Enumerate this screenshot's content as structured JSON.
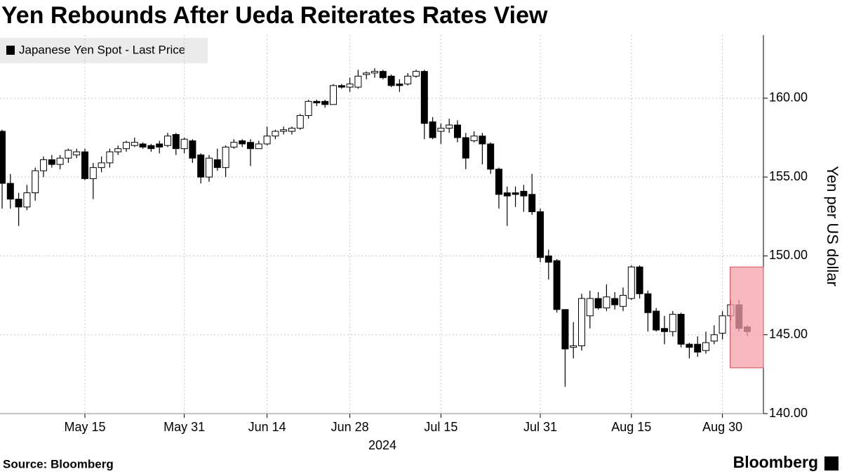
{
  "chart_data": {
    "type": "candlestick",
    "title": "Yen Rebounds After Ueda Reiterates Rates View",
    "y_axis_label": "Yen per US dollar",
    "x_group_label": "2024",
    "source": "Source: Bloomberg",
    "brand": "Bloomberg",
    "categories": [
      null,
      null,
      null,
      null,
      null,
      null,
      null,
      null,
      null,
      null,
      "May 15",
      null,
      null,
      null,
      null,
      null,
      null,
      null,
      null,
      null,
      null,
      null,
      "May 31",
      null,
      null,
      null,
      null,
      null,
      null,
      null,
      null,
      null,
      "Jun 14",
      null,
      null,
      null,
      null,
      null,
      null,
      null,
      null,
      null,
      "Jun 28",
      null,
      null,
      null,
      null,
      null,
      null,
      null,
      null,
      null,
      null,
      "Jul 15",
      null,
      null,
      null,
      null,
      null,
      null,
      null,
      null,
      null,
      null,
      null,
      "Jul 31",
      null,
      null,
      null,
      null,
      null,
      null,
      null,
      null,
      null,
      null,
      "Aug 15",
      null,
      null,
      null,
      null,
      null,
      null,
      null,
      null,
      null,
      null,
      "Aug 30",
      null,
      null,
      null
    ],
    "series": [
      {
        "name": "Japanese Yen Spot - Last Price",
        "up_color": "#ffffff",
        "down_color": "#000000",
        "open": [
          157.9,
          154.6,
          153.6,
          153.1,
          154.0,
          155.4,
          156.1,
          155.8,
          156.2,
          156.4,
          156.6,
          154.9,
          155.6,
          155.9,
          156.6,
          156.8,
          157.0,
          157.1,
          157.0,
          157.1,
          157.0,
          157.7,
          156.8,
          157.3,
          156.4,
          155.0,
          156.1,
          155.6,
          156.9,
          157.3,
          157.2,
          156.8,
          157.1,
          157.6,
          157.9,
          157.9,
          158.1,
          158.9,
          159.8,
          159.8,
          159.6,
          160.8,
          160.7,
          160.7,
          161.5,
          161.6,
          161.7,
          161.4,
          160.9,
          160.9,
          161.4,
          161.7,
          158.5,
          157.9,
          158.1,
          158.3,
          157.5,
          157.3,
          157.6,
          157.1,
          155.5,
          154.0,
          154.0,
          154.1,
          153.9,
          152.8,
          150.0,
          149.7,
          146.6,
          144.2,
          144.3,
          146.2,
          147.3,
          146.7,
          147.3,
          146.8,
          147.3,
          149.3,
          147.6,
          146.5,
          145.4,
          145.2,
          146.3,
          144.4,
          144.4,
          144.0,
          144.6,
          145.1,
          146.2,
          146.9,
          145.5
        ],
        "high": [
          158.0,
          155.2,
          154.0,
          154.5,
          155.6,
          156.3,
          156.4,
          156.4,
          156.8,
          156.8,
          156.8,
          155.9,
          156.3,
          156.8,
          157.0,
          157.3,
          157.5,
          157.2,
          157.1,
          157.3,
          157.8,
          157.8,
          157.5,
          157.4,
          156.5,
          156.4,
          156.8,
          157.0,
          157.4,
          157.4,
          157.4,
          157.3,
          158.2,
          158.0,
          158.2,
          158.2,
          159.0,
          159.9,
          159.9,
          159.9,
          160.9,
          160.9,
          161.3,
          161.8,
          161.7,
          161.9,
          161.8,
          161.5,
          161.2,
          161.6,
          161.8,
          161.8,
          158.8,
          158.4,
          158.7,
          158.6,
          157.8,
          157.9,
          157.8,
          157.2,
          155.6,
          154.4,
          154.4,
          154.5,
          155.2,
          153.0,
          150.4,
          149.8,
          146.6,
          145.8,
          147.6,
          147.8,
          147.7,
          148.2,
          147.7,
          148.0,
          149.4,
          149.4,
          147.8,
          146.7,
          146.2,
          146.5,
          146.4,
          144.5,
          144.9,
          145.2,
          145.6,
          146.5,
          147.2,
          147.2,
          145.6
        ],
        "low": [
          153.0,
          153.0,
          151.9,
          152.9,
          153.5,
          155.0,
          155.6,
          155.5,
          155.9,
          156.2,
          154.8,
          153.6,
          155.3,
          155.6,
          156.4,
          156.6,
          156.9,
          156.8,
          156.6,
          156.5,
          156.9,
          156.4,
          156.5,
          155.9,
          154.6,
          154.7,
          155.4,
          155.0,
          156.8,
          156.9,
          155.7,
          156.8,
          157.0,
          157.4,
          157.7,
          157.7,
          158.0,
          158.7,
          159.5,
          159.4,
          159.6,
          160.6,
          160.4,
          160.6,
          161.2,
          161.3,
          161.2,
          160.7,
          160.4,
          160.8,
          161.3,
          157.4,
          157.4,
          157.1,
          157.8,
          157.2,
          155.5,
          157.2,
          155.8,
          155.2,
          153.0,
          151.9,
          153.1,
          152.8,
          152.6,
          149.6,
          148.5,
          146.4,
          141.7,
          143.5,
          144.0,
          145.4,
          146.6,
          146.5,
          146.6,
          146.5,
          147.2,
          147.3,
          145.2,
          145.2,
          144.4,
          144.9,
          144.2,
          143.5,
          143.6,
          143.8,
          144.4,
          144.7,
          145.9,
          145.2,
          144.9
        ],
        "close": [
          154.6,
          153.6,
          153.1,
          154.0,
          155.4,
          156.1,
          155.8,
          156.2,
          156.7,
          156.6,
          154.9,
          155.6,
          155.9,
          156.6,
          156.8,
          157.2,
          157.2,
          156.9,
          156.8,
          156.9,
          157.6,
          156.8,
          157.4,
          156.2,
          155.0,
          156.2,
          155.6,
          156.9,
          157.2,
          157.1,
          156.8,
          157.1,
          157.6,
          157.9,
          158.0,
          158.1,
          158.9,
          159.8,
          159.7,
          159.6,
          160.8,
          160.7,
          160.9,
          161.4,
          161.6,
          161.7,
          161.3,
          160.8,
          160.8,
          161.4,
          161.7,
          158.4,
          157.5,
          158.1,
          158.3,
          157.5,
          156.2,
          157.6,
          157.1,
          155.5,
          153.9,
          153.8,
          153.9,
          153.8,
          152.8,
          149.9,
          149.6,
          146.6,
          144.1,
          144.3,
          147.3,
          147.3,
          146.7,
          147.4,
          146.9,
          147.5,
          149.3,
          147.6,
          146.4,
          145.3,
          145.2,
          146.3,
          144.4,
          144.2,
          143.9,
          144.5,
          145.0,
          146.2,
          146.9,
          145.4,
          145.2
        ]
      }
    ],
    "highlight": {
      "span": [
        88,
        90
      ],
      "ylim": [
        142.9,
        149.3
      ],
      "color": "#f4a0ab"
    },
    "ylim": [
      140,
      164
    ],
    "yticks": [
      {
        "value": 140,
        "label": "140.00"
      },
      {
        "value": 145,
        "label": "145.00"
      },
      {
        "value": 150,
        "label": "150.00"
      },
      {
        "value": 155,
        "label": "155.00"
      },
      {
        "value": 160,
        "label": "160.00"
      }
    ],
    "grid": true,
    "legend": "top-left"
  }
}
